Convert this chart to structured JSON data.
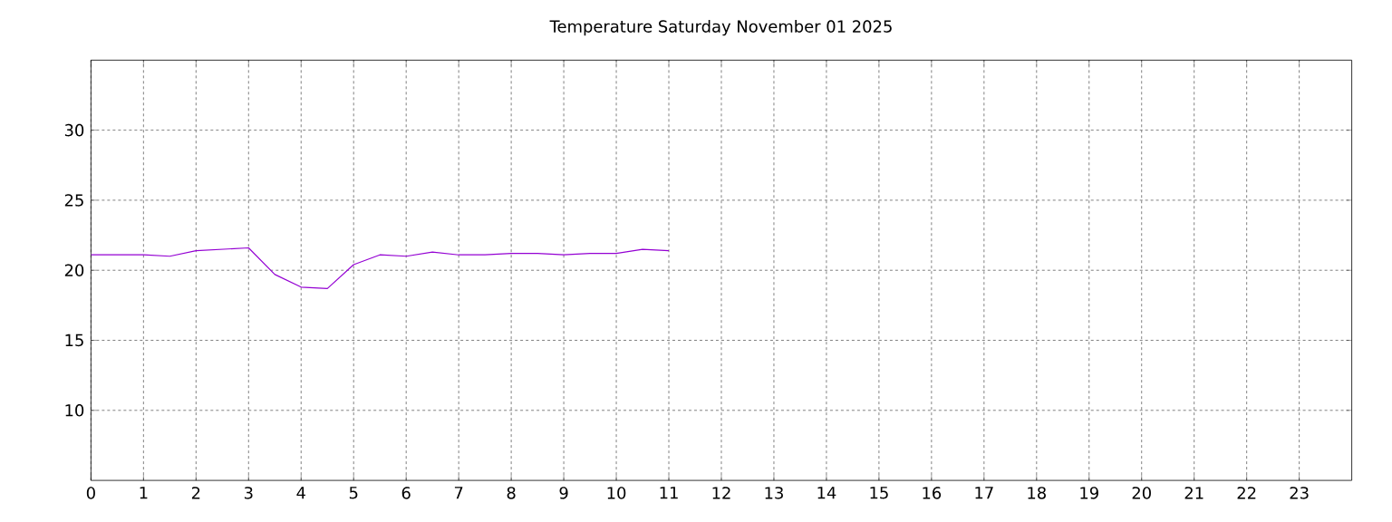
{
  "chart_data": {
    "type": "line",
    "title": "Temperature Saturday November 01 2025",
    "x": [
      0,
      0.5,
      1,
      1.5,
      2,
      2.5,
      3,
      3.5,
      4,
      4.5,
      5,
      5.5,
      6,
      6.5,
      7,
      7.5,
      8,
      8.5,
      9,
      9.5,
      10,
      10.5,
      11
    ],
    "series": [
      {
        "color": "#9400d3",
        "values": [
          21.1,
          21.1,
          21.1,
          21.0,
          21.4,
          21.5,
          21.6,
          19.7,
          18.8,
          18.7,
          20.4,
          21.1,
          21.0,
          21.3,
          21.1,
          21.1,
          21.2,
          21.2,
          21.1,
          21.2,
          21.2,
          21.5,
          21.4
        ]
      }
    ],
    "xlim": [
      0,
      24
    ],
    "xticks": [
      0,
      1,
      2,
      3,
      4,
      5,
      6,
      7,
      8,
      9,
      10,
      11,
      12,
      13,
      14,
      15,
      16,
      17,
      18,
      19,
      20,
      21,
      22,
      23
    ],
    "ylim": [
      5,
      35
    ],
    "yticks": [
      10,
      15,
      20,
      25,
      30
    ],
    "grid": true,
    "marker": "none",
    "line_style": "solid"
  }
}
